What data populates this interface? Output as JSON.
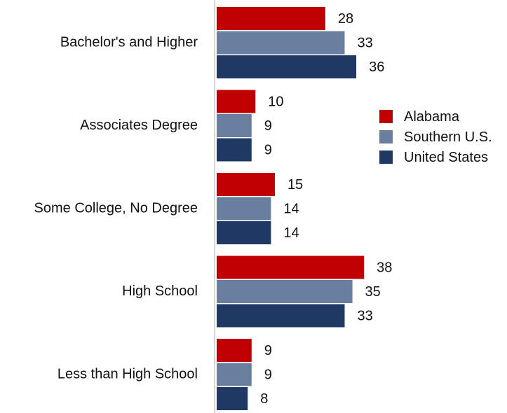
{
  "chart_data": {
    "type": "bar",
    "orientation": "horizontal",
    "categories": [
      "Bachelor's and Higher",
      "Associates Degree",
      "Some College, No Degree",
      "High School",
      "Less than High School"
    ],
    "series": [
      {
        "name": "Alabama",
        "color": "#c00000",
        "values": [
          28,
          10,
          15,
          38,
          9
        ]
      },
      {
        "name": "Southern U.S.",
        "color": "#6a7fa0",
        "values": [
          33,
          9,
          14,
          35,
          9
        ]
      },
      {
        "name": "United States",
        "color": "#1f3864",
        "values": [
          36,
          9,
          14,
          33,
          8
        ]
      }
    ],
    "title": "",
    "xlabel": "",
    "ylabel": "",
    "xlim": [
      0,
      40
    ],
    "grid": false,
    "legend": "right"
  }
}
